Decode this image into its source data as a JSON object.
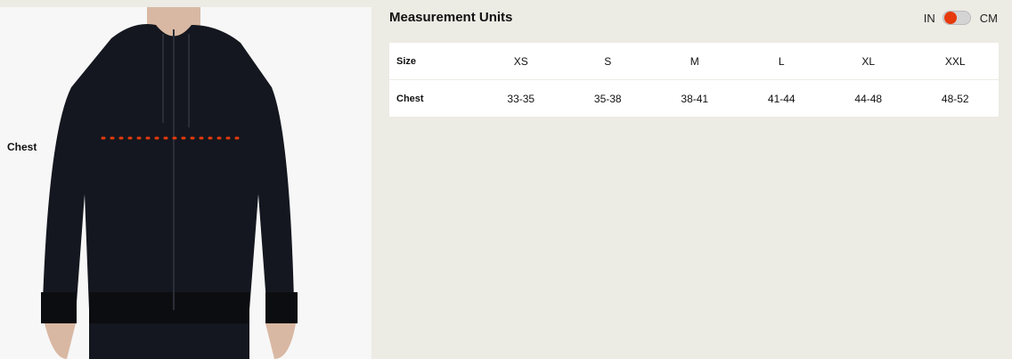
{
  "photo": {
    "measure_label": "Chest",
    "marker_color": "#e63a0c"
  },
  "header": {
    "title": "Measurement Units",
    "unit_left": "IN",
    "unit_right": "CM",
    "selected_unit": "IN",
    "toggle_color": "#e63a0c"
  },
  "table": {
    "header_label": "Size",
    "sizes": [
      "XS",
      "S",
      "M",
      "L",
      "XL",
      "XXL"
    ],
    "rows": [
      {
        "label": "Chest",
        "values": [
          "33-35",
          "35-38",
          "38-41",
          "41-44",
          "44-48",
          "48-52"
        ]
      }
    ]
  }
}
